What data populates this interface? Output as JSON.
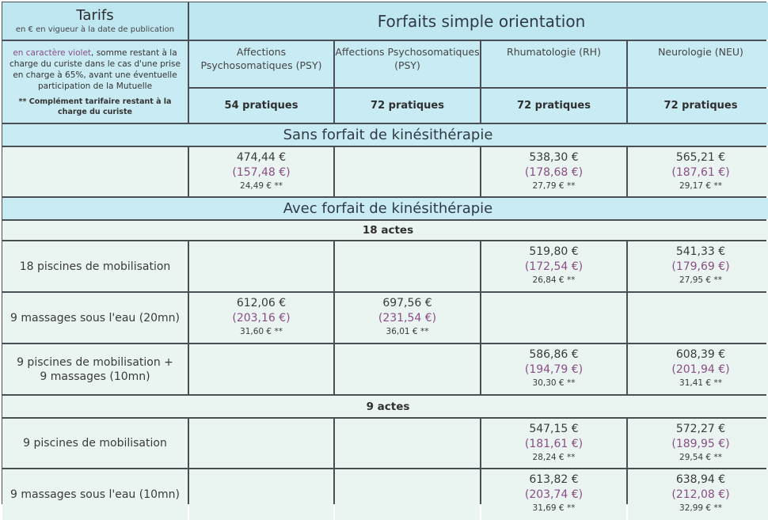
{
  "header": {
    "tarifs_title": "Tarifs",
    "tarifs_subtitle": "en € en vigueur à la date de publication",
    "forfaits_title": "Forfaits simple orientation",
    "note_violet": "en caractère violet",
    "note_rest": ", somme restant à la charge du curiste dans le cas d'une prise en charge à 65%, avant une éventuelle participation de la Mutuelle",
    "note_complement": "** Complément tarifaire restant à la charge du curiste",
    "columns": [
      {
        "name": "Affections Psychosomatiques (PSY)",
        "pratiques": "54 pratiques"
      },
      {
        "name": "Affections Psychosomatiques (PSY)",
        "pratiques": "72 pratiques"
      },
      {
        "name": "Rhumatologie (RH)",
        "pratiques": "72 pratiques"
      },
      {
        "name": "Neurologie (NEU)",
        "pratiques": "72 pratiques"
      }
    ]
  },
  "sections": {
    "sans_kine": "Sans forfait de kinésithérapie",
    "avec_kine": "Avec forfait de kinésithérapie",
    "actes_18": "18 actes",
    "actes_9": "9 actes"
  },
  "rows": {
    "sans": {
      "label": "",
      "cells": [
        {
          "main": "474,44 €",
          "violet": "(157,48 €)",
          "extra": "24,49 € **"
        },
        {
          "main": "",
          "violet": "",
          "extra": ""
        },
        {
          "main": "538,30 €",
          "violet": "(178,68 €)",
          "extra": "27,79 € **"
        },
        {
          "main": "565,21 €",
          "violet": "(187,61 €)",
          "extra": "29,17 € **"
        }
      ]
    },
    "a18_piscines": {
      "label": "18 piscines de mobilisation",
      "cells": [
        {
          "main": "",
          "violet": "",
          "extra": ""
        },
        {
          "main": "",
          "violet": "",
          "extra": ""
        },
        {
          "main": "519,80 €",
          "violet": "(172,54 €)",
          "extra": "26,84 € **"
        },
        {
          "main": "541,33 €",
          "violet": "(179,69 €)",
          "extra": "27,95 € **"
        }
      ]
    },
    "a18_massages": {
      "label": "9 massages sous l'eau (20mn)",
      "cells": [
        {
          "main": "612,06 €",
          "violet": "(203,16 €)",
          "extra": "31,60 € **"
        },
        {
          "main": "697,56 €",
          "violet": "(231,54 €)",
          "extra": "36,01 € **"
        },
        {
          "main": "",
          "violet": "",
          "extra": ""
        },
        {
          "main": "",
          "violet": "",
          "extra": ""
        }
      ]
    },
    "a18_mixte": {
      "label_line1": "9 piscines de mobilisation +",
      "label_line2": "9 massages (10mn)",
      "cells": [
        {
          "main": "",
          "violet": "",
          "extra": ""
        },
        {
          "main": "",
          "violet": "",
          "extra": ""
        },
        {
          "main": "586,86 €",
          "violet": "(194,79 €)",
          "extra": "30,30 € **"
        },
        {
          "main": "608,39 €",
          "violet": "(201,94 €)",
          "extra": "31,41 € **"
        }
      ]
    },
    "a9_piscines": {
      "label": "9 piscines de mobilisation",
      "cells": [
        {
          "main": "",
          "violet": "",
          "extra": ""
        },
        {
          "main": "",
          "violet": "",
          "extra": ""
        },
        {
          "main": "547,15 €",
          "violet": "(181,61 €)",
          "extra": "28,24 € **"
        },
        {
          "main": "572,27 €",
          "violet": "(189,95 €)",
          "extra": "29,54 € **"
        }
      ]
    },
    "a9_massages": {
      "label": "9 massages sous l'eau (10mn)",
      "cells": [
        {
          "main": "",
          "violet": "",
          "extra": ""
        },
        {
          "main": "",
          "violet": "",
          "extra": ""
        },
        {
          "main": "613,82 €",
          "violet": "(203,74 €)",
          "extra": "31,69 € **"
        },
        {
          "main": "638,94 €",
          "violet": "(212,08 €)",
          "extra": "32,99 € **"
        }
      ]
    }
  },
  "colors": {
    "light_bg": "#eaf5f2",
    "blue_bg": "#c9ebf3",
    "violet_text": "#8c4c86",
    "grid_lines": "#4a4f55"
  }
}
